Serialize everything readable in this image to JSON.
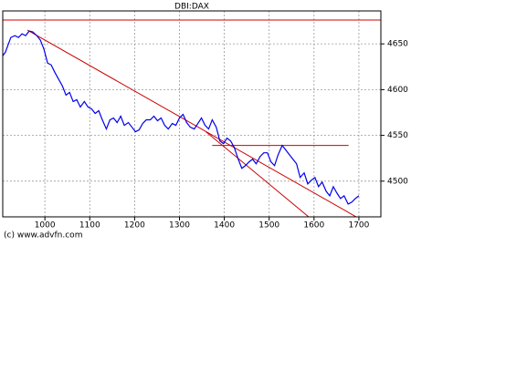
{
  "chart_data": {
    "type": "line",
    "title": "DBI:DAX",
    "credit": "(c) www.advfn.com",
    "x": [
      906,
      912,
      918,
      924,
      933,
      941,
      949,
      957,
      965,
      973,
      982,
      990,
      998,
      1006,
      1014,
      1022,
      1031,
      1039,
      1047,
      1055,
      1063,
      1071,
      1079,
      1088,
      1096,
      1104,
      1112,
      1120,
      1128,
      1137,
      1145,
      1153,
      1161,
      1169,
      1177,
      1186,
      1194,
      1202,
      1210,
      1218,
      1226,
      1235,
      1243,
      1251,
      1259,
      1267,
      1275,
      1284,
      1292,
      1300,
      1308,
      1316,
      1324,
      1333,
      1341,
      1349,
      1357,
      1365,
      1373,
      1382,
      1390,
      1398,
      1406,
      1414,
      1422,
      1431,
      1439,
      1447,
      1455,
      1463,
      1471,
      1480,
      1488,
      1496,
      1504,
      1512,
      1520,
      1529,
      1537,
      1545,
      1553,
      1561,
      1569,
      1578,
      1586,
      1594,
      1602,
      1610,
      1618,
      1627,
      1635,
      1643,
      1651,
      1659,
      1667,
      1676,
      1684,
      1692,
      1700
    ],
    "series": [
      {
        "color": "#0000ee",
        "values": [
          4637,
          4641,
          4649,
          4657,
          4659,
          4657,
          4661,
          4659,
          4664,
          4663,
          4659,
          4654,
          4644,
          4629,
          4627,
          4619,
          4611,
          4604,
          4594,
          4597,
          4587,
          4589,
          4581,
          4587,
          4581,
          4579,
          4574,
          4577,
          4567,
          4557,
          4567,
          4569,
          4564,
          4571,
          4561,
          4564,
          4559,
          4554,
          4556,
          4563,
          4567,
          4567,
          4571,
          4566,
          4569,
          4561,
          4557,
          4563,
          4561,
          4569,
          4573,
          4564,
          4559,
          4557,
          4563,
          4569,
          4561,
          4557,
          4567,
          4559,
          4544,
          4541,
          4547,
          4544,
          4537,
          4524,
          4514,
          4517,
          4521,
          4524,
          4519,
          4527,
          4531,
          4531,
          4521,
          4517,
          4529,
          4539,
          4534,
          4529,
          4524,
          4519,
          4504,
          4509,
          4497,
          4501,
          4504,
          4494,
          4499,
          4489,
          4484,
          4494,
          4487,
          4481,
          4484,
          4475,
          4477,
          4481,
          4484
        ]
      }
    ],
    "trend_lines": [
      {
        "color": "#cc0000",
        "x": [
          906,
          1749
        ],
        "y": [
          4676,
          4676
        ]
      },
      {
        "color": "#cc0000",
        "x": [
          961,
          1737
        ],
        "y": [
          4665,
          4449
        ]
      },
      {
        "color": "#cc0000",
        "x": [
          1359,
          1588
        ],
        "y": [
          4554,
          4461
        ]
      },
      {
        "color": "#cc0000",
        "x": [
          1373,
          1677
        ],
        "y": [
          4539,
          4539
        ]
      }
    ],
    "xlim": [
      906,
      1749
    ],
    "ylim": [
      4461,
      4686
    ],
    "xticks": [
      1000,
      1100,
      1200,
      1300,
      1400,
      1500,
      1600,
      1700
    ],
    "yticks": [
      4500,
      4550,
      4600,
      4650
    ],
    "grid": true
  }
}
